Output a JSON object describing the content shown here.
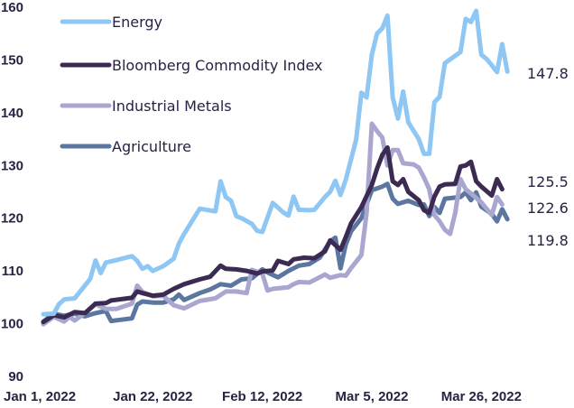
{
  "chart_data": {
    "type": "line",
    "title": "",
    "xlabel": "",
    "ylabel": "",
    "ylim": [
      90,
      160
    ],
    "yticks": [
      90,
      100,
      110,
      120,
      130,
      140,
      150,
      160
    ],
    "x_start": "2022-01-01",
    "x_end": "2022-04-01",
    "xticks": [
      {
        "date": "2022-01-01",
        "label": "Jan 1, 2022"
      },
      {
        "date": "2022-01-22",
        "label": "Jan 22, 2022"
      },
      {
        "date": "2022-02-12",
        "label": "Feb 12, 2022"
      },
      {
        "date": "2022-03-05",
        "label": "Mar 5, 2022"
      },
      {
        "date": "2022-03-26",
        "label": "Mar 26, 2022"
      }
    ],
    "legend_position": "top-left",
    "grid": false,
    "series": [
      {
        "name": "Energy",
        "color": "#8ec6f4",
        "end_label": "147.8",
        "points": [
          [
            "2022-01-01",
            101.8
          ],
          [
            "2022-01-03",
            101.9
          ],
          [
            "2022-01-04",
            103.7
          ],
          [
            "2022-01-05",
            104.6
          ],
          [
            "2022-01-07",
            104.8
          ],
          [
            "2022-01-10",
            108.5
          ],
          [
            "2022-01-11",
            112.0
          ],
          [
            "2022-01-12",
            109.6
          ],
          [
            "2022-01-13",
            111.6
          ],
          [
            "2022-01-14",
            111.8
          ],
          [
            "2022-01-18",
            112.8
          ],
          [
            "2022-01-19",
            111.9
          ],
          [
            "2022-01-20",
            110.4
          ],
          [
            "2022-01-21",
            110.9
          ],
          [
            "2022-01-22",
            110.0
          ],
          [
            "2022-01-24",
            110.9
          ],
          [
            "2022-01-26",
            112.3
          ],
          [
            "2022-01-27",
            115.2
          ],
          [
            "2022-01-28",
            117.0
          ],
          [
            "2022-01-31",
            121.8
          ],
          [
            "2022-02-03",
            121.3
          ],
          [
            "2022-02-04",
            127.0
          ],
          [
            "2022-02-05",
            124.0
          ],
          [
            "2022-02-06",
            123.3
          ],
          [
            "2022-02-07",
            120.4
          ],
          [
            "2022-02-08",
            120.0
          ],
          [
            "2022-02-10",
            118.9
          ],
          [
            "2022-02-11",
            117.6
          ],
          [
            "2022-02-12",
            117.4
          ],
          [
            "2022-02-14",
            122.9
          ],
          [
            "2022-02-15",
            122.0
          ],
          [
            "2022-02-16",
            121.1
          ],
          [
            "2022-02-17",
            120.5
          ],
          [
            "2022-02-18",
            124.1
          ],
          [
            "2022-02-19",
            121.6
          ],
          [
            "2022-02-21",
            121.5
          ],
          [
            "2022-02-22",
            121.6
          ],
          [
            "2022-02-24",
            124.0
          ],
          [
            "2022-02-25",
            125.0
          ],
          [
            "2022-02-26",
            127.1
          ],
          [
            "2022-02-27",
            124.4
          ],
          [
            "2022-02-28",
            127.3
          ],
          [
            "2022-03-01",
            131.1
          ],
          [
            "2022-03-02",
            135.0
          ],
          [
            "2022-03-03",
            143.8
          ],
          [
            "2022-03-04",
            142.9
          ],
          [
            "2022-03-05",
            151.0
          ],
          [
            "2022-03-06",
            155.0
          ],
          [
            "2022-03-07",
            156.0
          ],
          [
            "2022-03-08",
            158.4
          ],
          [
            "2022-03-09",
            142.9
          ],
          [
            "2022-03-10",
            138.9
          ],
          [
            "2022-03-11",
            144.0
          ],
          [
            "2022-03-12",
            138.2
          ],
          [
            "2022-03-14",
            135.0
          ],
          [
            "2022-03-15",
            132.2
          ],
          [
            "2022-03-16",
            132.2
          ],
          [
            "2022-03-17",
            142.0
          ],
          [
            "2022-03-18",
            143.0
          ],
          [
            "2022-03-19",
            149.4
          ],
          [
            "2022-03-21",
            150.8
          ],
          [
            "2022-03-22",
            151.5
          ],
          [
            "2022-03-23",
            157.8
          ],
          [
            "2022-03-24",
            157.2
          ],
          [
            "2022-03-25",
            159.3
          ],
          [
            "2022-03-26",
            151.0
          ],
          [
            "2022-03-27",
            150.2
          ],
          [
            "2022-03-28",
            149.0
          ],
          [
            "2022-03-29",
            147.7
          ],
          [
            "2022-03-30",
            153.0
          ],
          [
            "2022-03-31",
            147.8
          ]
        ]
      },
      {
        "name": "Bloomberg Commodity Index",
        "color": "#3b2a52",
        "end_label": "125.5",
        "points": [
          [
            "2022-01-01",
            100.3
          ],
          [
            "2022-01-03",
            101.6
          ],
          [
            "2022-01-05",
            101.2
          ],
          [
            "2022-01-07",
            102.2
          ],
          [
            "2022-01-09",
            102.0
          ],
          [
            "2022-01-11",
            103.8
          ],
          [
            "2022-01-13",
            103.9
          ],
          [
            "2022-01-14",
            104.4
          ],
          [
            "2022-01-18",
            104.9
          ],
          [
            "2022-01-19",
            106.1
          ],
          [
            "2022-01-20",
            105.8
          ],
          [
            "2022-01-22",
            105.3
          ],
          [
            "2022-01-24",
            105.5
          ],
          [
            "2022-01-26",
            106.6
          ],
          [
            "2022-01-28",
            107.5
          ],
          [
            "2022-01-31",
            108.4
          ],
          [
            "2022-02-02",
            108.9
          ],
          [
            "2022-02-04",
            111.0
          ],
          [
            "2022-02-05",
            110.4
          ],
          [
            "2022-02-07",
            110.3
          ],
          [
            "2022-02-09",
            110.0
          ],
          [
            "2022-02-11",
            109.5
          ],
          [
            "2022-02-12",
            109.9
          ],
          [
            "2022-02-14",
            110.1
          ],
          [
            "2022-02-15",
            111.9
          ],
          [
            "2022-02-17",
            111.3
          ],
          [
            "2022-02-18",
            112.2
          ],
          [
            "2022-02-20",
            112.5
          ],
          [
            "2022-02-22",
            112.4
          ],
          [
            "2022-02-24",
            113.7
          ],
          [
            "2022-02-25",
            115.8
          ],
          [
            "2022-02-27",
            114.0
          ],
          [
            "2022-02-28",
            116.4
          ],
          [
            "2022-03-01",
            119.0
          ],
          [
            "2022-03-03",
            122.1
          ],
          [
            "2022-03-05",
            126.3
          ],
          [
            "2022-03-06",
            129.4
          ],
          [
            "2022-03-07",
            132.0
          ],
          [
            "2022-03-08",
            133.4
          ],
          [
            "2022-03-09",
            127.0
          ],
          [
            "2022-03-10",
            126.3
          ],
          [
            "2022-03-11",
            127.4
          ],
          [
            "2022-03-12",
            125.0
          ],
          [
            "2022-03-14",
            123.4
          ],
          [
            "2022-03-15",
            121.5
          ],
          [
            "2022-03-16",
            121.0
          ],
          [
            "2022-03-17",
            124.1
          ],
          [
            "2022-03-18",
            126.0
          ],
          [
            "2022-03-19",
            126.4
          ],
          [
            "2022-03-21",
            126.5
          ],
          [
            "2022-03-22",
            129.8
          ],
          [
            "2022-03-23",
            130.0
          ],
          [
            "2022-03-24",
            130.7
          ],
          [
            "2022-03-25",
            127.0
          ],
          [
            "2022-03-26",
            126.0
          ],
          [
            "2022-03-28",
            124.3
          ],
          [
            "2022-03-29",
            127.4
          ],
          [
            "2022-03-30",
            125.5
          ]
        ]
      },
      {
        "name": "Industrial Metals",
        "color": "#a9a6cf",
        "end_label": "122.6",
        "points": [
          [
            "2022-01-01",
            99.9
          ],
          [
            "2022-01-03",
            101.3
          ],
          [
            "2022-01-05",
            100.4
          ],
          [
            "2022-01-06",
            101.3
          ],
          [
            "2022-01-07",
            100.6
          ],
          [
            "2022-01-09",
            102.0
          ],
          [
            "2022-01-11",
            103.7
          ],
          [
            "2022-01-13",
            102.8
          ],
          [
            "2022-01-15",
            102.8
          ],
          [
            "2022-01-18",
            103.8
          ],
          [
            "2022-01-19",
            107.2
          ],
          [
            "2022-01-20",
            106.0
          ],
          [
            "2022-01-22",
            105.2
          ],
          [
            "2022-01-24",
            105.3
          ],
          [
            "2022-01-26",
            103.5
          ],
          [
            "2022-01-28",
            102.9
          ],
          [
            "2022-01-31",
            104.3
          ],
          [
            "2022-02-03",
            104.8
          ],
          [
            "2022-02-05",
            106.1
          ],
          [
            "2022-02-07",
            106.1
          ],
          [
            "2022-02-09",
            105.8
          ],
          [
            "2022-02-10",
            110.2
          ],
          [
            "2022-02-12",
            109.5
          ],
          [
            "2022-02-13",
            106.3
          ],
          [
            "2022-02-14",
            106.6
          ],
          [
            "2022-02-17",
            106.9
          ],
          [
            "2022-02-18",
            107.5
          ],
          [
            "2022-02-19",
            107.9
          ],
          [
            "2022-02-21",
            107.8
          ],
          [
            "2022-02-24",
            109.3
          ],
          [
            "2022-02-25",
            108.7
          ],
          [
            "2022-02-27",
            109.2
          ],
          [
            "2022-02-28",
            109.1
          ],
          [
            "2022-03-01",
            110.5
          ],
          [
            "2022-03-03",
            113.0
          ],
          [
            "2022-03-04",
            121.0
          ],
          [
            "2022-03-05",
            137.9
          ],
          [
            "2022-03-06",
            136.5
          ],
          [
            "2022-03-07",
            135.3
          ],
          [
            "2022-03-08",
            130.0
          ],
          [
            "2022-03-09",
            132.9
          ],
          [
            "2022-03-10",
            132.9
          ],
          [
            "2022-03-11",
            130.4
          ],
          [
            "2022-03-13",
            130.2
          ],
          [
            "2022-03-14",
            129.6
          ],
          [
            "2022-03-15",
            127.7
          ],
          [
            "2022-03-16",
            125.5
          ],
          [
            "2022-03-17",
            120.6
          ],
          [
            "2022-03-18",
            119.4
          ],
          [
            "2022-03-19",
            117.8
          ],
          [
            "2022-03-20",
            117.0
          ],
          [
            "2022-03-21",
            121.0
          ],
          [
            "2022-03-22",
            127.4
          ],
          [
            "2022-03-23",
            125.5
          ],
          [
            "2022-03-24",
            124.7
          ],
          [
            "2022-03-26",
            123.0
          ],
          [
            "2022-03-28",
            120.6
          ],
          [
            "2022-03-29",
            124.0
          ],
          [
            "2022-03-30",
            122.6
          ]
        ]
      },
      {
        "name": "Agriculture",
        "color": "#5b77a0",
        "end_label": "119.8",
        "points": [
          [
            "2022-01-01",
            100.4
          ],
          [
            "2022-01-03",
            101.9
          ],
          [
            "2022-01-05",
            101.5
          ],
          [
            "2022-01-07",
            101.9
          ],
          [
            "2022-01-09",
            101.4
          ],
          [
            "2022-01-11",
            102.0
          ],
          [
            "2022-01-13",
            102.4
          ],
          [
            "2022-01-14",
            100.5
          ],
          [
            "2022-01-18",
            101.0
          ],
          [
            "2022-01-19",
            103.6
          ],
          [
            "2022-01-20",
            104.2
          ],
          [
            "2022-01-22",
            104.0
          ],
          [
            "2022-01-24",
            104.0
          ],
          [
            "2022-01-26",
            104.6
          ],
          [
            "2022-01-27",
            105.5
          ],
          [
            "2022-01-28",
            104.5
          ],
          [
            "2022-01-31",
            105.8
          ],
          [
            "2022-02-02",
            106.5
          ],
          [
            "2022-02-04",
            107.5
          ],
          [
            "2022-02-06",
            107.2
          ],
          [
            "2022-02-08",
            108.4
          ],
          [
            "2022-02-10",
            108.6
          ],
          [
            "2022-02-12",
            110.3
          ],
          [
            "2022-02-13",
            109.7
          ],
          [
            "2022-02-15",
            108.8
          ],
          [
            "2022-02-17",
            110.0
          ],
          [
            "2022-02-19",
            111.0
          ],
          [
            "2022-02-21",
            111.3
          ],
          [
            "2022-02-23",
            112.5
          ],
          [
            "2022-02-25",
            115.6
          ],
          [
            "2022-02-26",
            116.3
          ],
          [
            "2022-02-27",
            110.5
          ],
          [
            "2022-02-28",
            115.0
          ],
          [
            "2022-03-01",
            117.5
          ],
          [
            "2022-03-03",
            120.0
          ],
          [
            "2022-03-05",
            125.3
          ],
          [
            "2022-03-07",
            126.0
          ],
          [
            "2022-03-08",
            126.5
          ],
          [
            "2022-03-09",
            123.7
          ],
          [
            "2022-03-10",
            122.7
          ],
          [
            "2022-03-12",
            123.3
          ],
          [
            "2022-03-14",
            122.5
          ],
          [
            "2022-03-15",
            122.6
          ],
          [
            "2022-03-16",
            120.4
          ],
          [
            "2022-03-17",
            122.1
          ],
          [
            "2022-03-18",
            121.0
          ],
          [
            "2022-03-19",
            123.7
          ],
          [
            "2022-03-21",
            123.9
          ],
          [
            "2022-03-22",
            124.0
          ],
          [
            "2022-03-23",
            124.9
          ],
          [
            "2022-03-24",
            123.4
          ],
          [
            "2022-03-25",
            124.9
          ],
          [
            "2022-03-26",
            122.2
          ],
          [
            "2022-03-28",
            120.8
          ],
          [
            "2022-03-29",
            119.4
          ],
          [
            "2022-03-30",
            121.7
          ],
          [
            "2022-03-31",
            119.8
          ]
        ]
      }
    ]
  }
}
